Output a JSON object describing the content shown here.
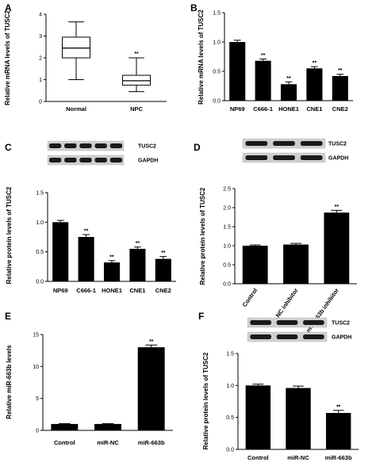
{
  "chart_data": [
    {
      "panel": "A",
      "type": "box",
      "ylabel": "Relative mRNA levels of TUSC2",
      "ylim": [
        0,
        4
      ],
      "yticks": [
        0,
        1,
        2,
        3,
        4
      ],
      "categories": [
        "Normal",
        "NPC"
      ],
      "boxes": [
        {
          "category": "Normal",
          "min": 1.0,
          "q1": 2.0,
          "median": 2.45,
          "q3": 2.95,
          "max": 3.65,
          "sig": ""
        },
        {
          "category": "NPC",
          "min": 0.45,
          "q1": 0.75,
          "median": 0.95,
          "q3": 1.2,
          "max": 2.0,
          "sig": "**"
        }
      ]
    },
    {
      "panel": "B",
      "type": "bar",
      "ylabel": "Relative mRNA levels of TUSC2",
      "ylim": [
        0,
        1.5
      ],
      "yticks": [
        0.0,
        0.5,
        1.0,
        1.5
      ],
      "categories": [
        "NP69",
        "C666-1",
        "HONE1",
        "CNE1",
        "CNE2"
      ],
      "values": [
        1.0,
        0.68,
        0.28,
        0.55,
        0.42
      ],
      "errors": [
        0.03,
        0.03,
        0.04,
        0.03,
        0.03
      ],
      "sig": [
        "",
        "**",
        "**",
        "**",
        "**"
      ],
      "tick_rotate": 0
    },
    {
      "panel": "C",
      "type": "bar",
      "ylabel": "Relative protein levels of TUSC2",
      "ylim": [
        0,
        1.5
      ],
      "yticks": [
        0.0,
        0.5,
        1.0,
        1.5
      ],
      "categories": [
        "NP69",
        "C666-1",
        "HONE1",
        "CNE1",
        "CNE2"
      ],
      "values": [
        1.0,
        0.75,
        0.32,
        0.55,
        0.38
      ],
      "errors": [
        0.03,
        0.04,
        0.03,
        0.03,
        0.04
      ],
      "sig": [
        "",
        "**",
        "**",
        "**",
        "**"
      ],
      "tick_rotate": 0,
      "blots": [
        "TUSC2",
        "GAPDH"
      ]
    },
    {
      "panel": "D",
      "type": "bar",
      "ylabel": "Relative protein levels of TUSC2",
      "ylim": [
        0,
        2.5
      ],
      "yticks": [
        0.0,
        0.5,
        1.0,
        1.5,
        2.0,
        2.5
      ],
      "categories": [
        "Control",
        "NC inhibitor",
        "miR-663b inhibitor"
      ],
      "values": [
        1.0,
        1.03,
        1.87
      ],
      "errors": [
        0.02,
        0.03,
        0.06
      ],
      "sig": [
        "",
        "",
        "**"
      ],
      "tick_rotate": -55,
      "blots": [
        "TUSC2",
        "GAPDH"
      ]
    },
    {
      "panel": "E",
      "type": "bar",
      "ylabel": "Relative miR-663b levels",
      "ylim": [
        0,
        15
      ],
      "yticks": [
        0,
        5,
        10,
        15
      ],
      "categories": [
        "Control",
        "miR-NC",
        "miR-663b"
      ],
      "values": [
        1.0,
        1.0,
        13.0
      ],
      "errors": [
        0.05,
        0.05,
        0.35
      ],
      "sig": [
        "",
        "",
        "**"
      ],
      "tick_rotate": 0
    },
    {
      "panel": "F",
      "type": "bar",
      "ylabel": "Relative protein levels of TUSC2",
      "ylim": [
        0,
        1.5
      ],
      "yticks": [
        0.0,
        0.5,
        1.0,
        1.5
      ],
      "categories": [
        "Control",
        "miR-NC",
        "miR-663b"
      ],
      "values": [
        1.0,
        0.96,
        0.57
      ],
      "errors": [
        0.02,
        0.03,
        0.04
      ],
      "sig": [
        "",
        "",
        "**"
      ],
      "tick_rotate": 0,
      "blots": [
        "TUSC2",
        "GAPDH"
      ]
    }
  ]
}
